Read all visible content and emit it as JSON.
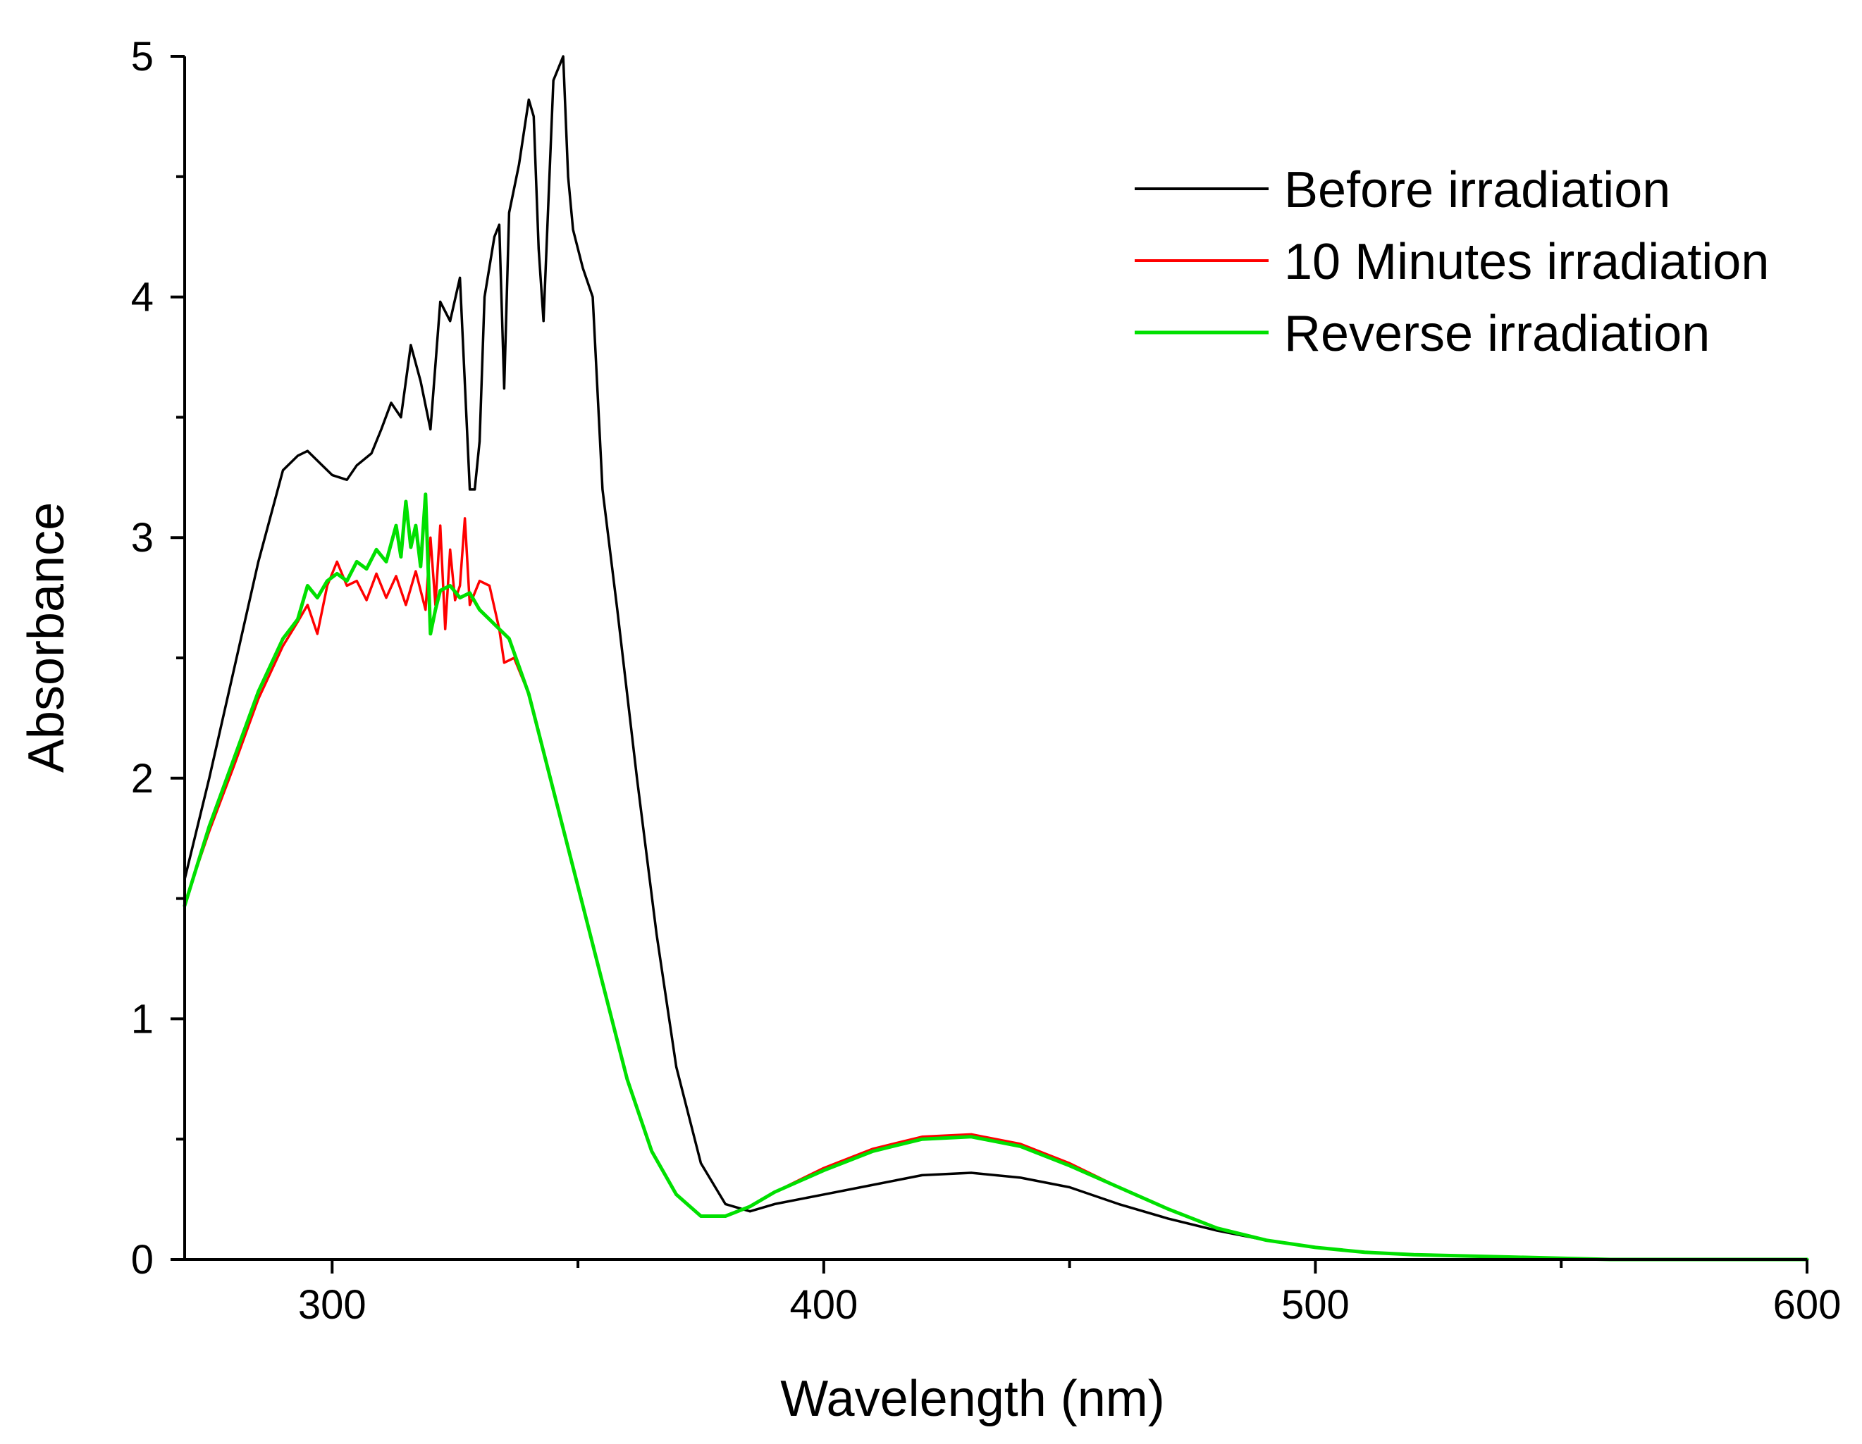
{
  "chart_data": {
    "type": "line",
    "title": "",
    "xlabel": "Wavelength (nm)",
    "ylabel": "Absorbance",
    "xlim": [
      270,
      600
    ],
    "ylim": [
      0,
      5
    ],
    "x_major_ticks": [
      300,
      400,
      500,
      600
    ],
    "x_minor_ticks": [
      350,
      450,
      550
    ],
    "y_major_ticks": [
      0,
      1,
      2,
      3,
      4,
      5
    ],
    "y_minor_ticks": [
      0.5,
      1.5,
      2.5,
      3.5,
      4.5
    ],
    "grid": false,
    "legend_position": "top-right",
    "series": [
      {
        "name": "Before irradiation",
        "color": "#000000",
        "points": [
          [
            270,
            1.58
          ],
          [
            275,
            2.0
          ],
          [
            280,
            2.45
          ],
          [
            285,
            2.9
          ],
          [
            290,
            3.28
          ],
          [
            293,
            3.34
          ],
          [
            295,
            3.36
          ],
          [
            298,
            3.3
          ],
          [
            300,
            3.26
          ],
          [
            303,
            3.24
          ],
          [
            305,
            3.3
          ],
          [
            308,
            3.35
          ],
          [
            310,
            3.45
          ],
          [
            312,
            3.56
          ],
          [
            314,
            3.5
          ],
          [
            316,
            3.8
          ],
          [
            318,
            3.65
          ],
          [
            320,
            3.45
          ],
          [
            322,
            3.98
          ],
          [
            324,
            3.9
          ],
          [
            326,
            4.08
          ],
          [
            328,
            3.2
          ],
          [
            329,
            3.2
          ],
          [
            330,
            3.4
          ],
          [
            331,
            4.0
          ],
          [
            333,
            4.25
          ],
          [
            334,
            4.3
          ],
          [
            335,
            3.62
          ],
          [
            336,
            4.35
          ],
          [
            338,
            4.55
          ],
          [
            340,
            4.82
          ],
          [
            341,
            4.75
          ],
          [
            342,
            4.2
          ],
          [
            343,
            3.9
          ],
          [
            344,
            4.4
          ],
          [
            345,
            4.9
          ],
          [
            347,
            5.0
          ],
          [
            348,
            4.5
          ],
          [
            349,
            4.28
          ],
          [
            351,
            4.12
          ],
          [
            353,
            4.0
          ],
          [
            355,
            3.2
          ],
          [
            358,
            2.7
          ],
          [
            362,
            2.0
          ],
          [
            366,
            1.35
          ],
          [
            370,
            0.8
          ],
          [
            375,
            0.4
          ],
          [
            380,
            0.23
          ],
          [
            385,
            0.2
          ],
          [
            390,
            0.23
          ],
          [
            400,
            0.27
          ],
          [
            410,
            0.31
          ],
          [
            420,
            0.35
          ],
          [
            430,
            0.36
          ],
          [
            440,
            0.34
          ],
          [
            450,
            0.3
          ],
          [
            460,
            0.23
          ],
          [
            470,
            0.17
          ],
          [
            480,
            0.12
          ],
          [
            490,
            0.08
          ],
          [
            500,
            0.05
          ],
          [
            510,
            0.03
          ],
          [
            520,
            0.02
          ],
          [
            540,
            0.01
          ],
          [
            560,
            0.0
          ],
          [
            600,
            0.0
          ]
        ]
      },
      {
        "name": "10 Minutes irradiation",
        "color": "#ff0000",
        "points": [
          [
            270,
            1.48
          ],
          [
            275,
            1.78
          ],
          [
            280,
            2.05
          ],
          [
            285,
            2.33
          ],
          [
            290,
            2.55
          ],
          [
            293,
            2.65
          ],
          [
            295,
            2.72
          ],
          [
            297,
            2.6
          ],
          [
            299,
            2.8
          ],
          [
            301,
            2.9
          ],
          [
            303,
            2.8
          ],
          [
            305,
            2.82
          ],
          [
            307,
            2.74
          ],
          [
            309,
            2.85
          ],
          [
            311,
            2.75
          ],
          [
            313,
            2.84
          ],
          [
            315,
            2.72
          ],
          [
            317,
            2.86
          ],
          [
            319,
            2.7
          ],
          [
            320,
            3.0
          ],
          [
            321,
            2.72
          ],
          [
            322,
            3.05
          ],
          [
            323,
            2.62
          ],
          [
            324,
            2.95
          ],
          [
            325,
            2.74
          ],
          [
            326,
            2.8
          ],
          [
            327,
            3.08
          ],
          [
            328,
            2.72
          ],
          [
            330,
            2.82
          ],
          [
            332,
            2.8
          ],
          [
            334,
            2.62
          ],
          [
            335,
            2.48
          ],
          [
            337,
            2.5
          ],
          [
            340,
            2.35
          ],
          [
            345,
            1.95
          ],
          [
            350,
            1.55
          ],
          [
            355,
            1.15
          ],
          [
            360,
            0.75
          ],
          [
            365,
            0.45
          ],
          [
            370,
            0.27
          ],
          [
            375,
            0.18
          ],
          [
            380,
            0.18
          ],
          [
            385,
            0.22
          ],
          [
            390,
            0.28
          ],
          [
            400,
            0.38
          ],
          [
            410,
            0.46
          ],
          [
            420,
            0.51
          ],
          [
            430,
            0.52
          ],
          [
            440,
            0.48
          ],
          [
            450,
            0.4
          ],
          [
            460,
            0.3
          ],
          [
            470,
            0.21
          ],
          [
            480,
            0.13
          ],
          [
            490,
            0.08
          ],
          [
            500,
            0.05
          ],
          [
            510,
            0.03
          ],
          [
            520,
            0.02
          ],
          [
            540,
            0.01
          ],
          [
            560,
            0.0
          ],
          [
            600,
            0.0
          ]
        ]
      },
      {
        "name": "Reverse irradiation",
        "color": "#00e000",
        "points": [
          [
            270,
            1.47
          ],
          [
            275,
            1.8
          ],
          [
            280,
            2.08
          ],
          [
            285,
            2.36
          ],
          [
            290,
            2.58
          ],
          [
            293,
            2.66
          ],
          [
            295,
            2.8
          ],
          [
            297,
            2.75
          ],
          [
            299,
            2.82
          ],
          [
            301,
            2.85
          ],
          [
            303,
            2.82
          ],
          [
            305,
            2.9
          ],
          [
            307,
            2.87
          ],
          [
            309,
            2.95
          ],
          [
            311,
            2.9
          ],
          [
            313,
            3.05
          ],
          [
            314,
            2.92
          ],
          [
            315,
            3.15
          ],
          [
            316,
            2.96
          ],
          [
            317,
            3.05
          ],
          [
            318,
            2.88
          ],
          [
            319,
            3.18
          ],
          [
            320,
            2.6
          ],
          [
            321,
            2.7
          ],
          [
            322,
            2.78
          ],
          [
            324,
            2.8
          ],
          [
            326,
            2.75
          ],
          [
            328,
            2.77
          ],
          [
            330,
            2.7
          ],
          [
            332,
            2.66
          ],
          [
            334,
            2.62
          ],
          [
            336,
            2.58
          ],
          [
            340,
            2.35
          ],
          [
            345,
            1.95
          ],
          [
            350,
            1.55
          ],
          [
            355,
            1.15
          ],
          [
            360,
            0.75
          ],
          [
            365,
            0.45
          ],
          [
            370,
            0.27
          ],
          [
            375,
            0.18
          ],
          [
            380,
            0.18
          ],
          [
            385,
            0.22
          ],
          [
            390,
            0.28
          ],
          [
            400,
            0.37
          ],
          [
            410,
            0.45
          ],
          [
            420,
            0.5
          ],
          [
            430,
            0.51
          ],
          [
            440,
            0.47
          ],
          [
            450,
            0.39
          ],
          [
            460,
            0.3
          ],
          [
            470,
            0.21
          ],
          [
            480,
            0.13
          ],
          [
            490,
            0.08
          ],
          [
            500,
            0.05
          ],
          [
            510,
            0.03
          ],
          [
            520,
            0.02
          ],
          [
            540,
            0.01
          ],
          [
            560,
            0.0
          ],
          [
            600,
            0.0
          ]
        ]
      }
    ]
  }
}
